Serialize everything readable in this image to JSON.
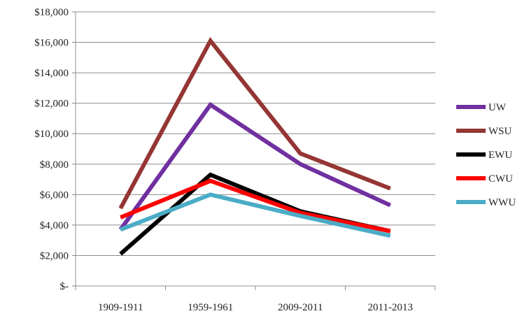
{
  "chart_data": {
    "type": "line",
    "categories": [
      "1909-1911",
      "1959-1961",
      "2009-2011",
      "2011-2013"
    ],
    "ylim": [
      0,
      18000
    ],
    "y_ticks": [
      0,
      2000,
      4000,
      6000,
      8000,
      10000,
      12000,
      14000,
      16000,
      18000
    ],
    "y_tick_labels": [
      "$-",
      "$2,000",
      "$4,000",
      "$6,000",
      "$8,000",
      "$10,000",
      "$12,000",
      "$14,000",
      "$16,000",
      "$18,000"
    ],
    "grid": true,
    "legend_position": "right",
    "series": [
      {
        "name": "UW",
        "color": "#7030a0",
        "values": [
          3700,
          11900,
          8000,
          5300
        ]
      },
      {
        "name": "WSU",
        "color": "#943634",
        "values": [
          5100,
          16100,
          8700,
          6400
        ]
      },
      {
        "name": "EWU",
        "color": "#000000",
        "values": [
          2100,
          7300,
          4900,
          3600
        ]
      },
      {
        "name": "CWU",
        "color": "#ff0000",
        "values": [
          4500,
          6900,
          4800,
          3600
        ]
      },
      {
        "name": "WWU",
        "color": "#4bacc6",
        "values": [
          3700,
          6000,
          4600,
          3300
        ]
      }
    ]
  }
}
